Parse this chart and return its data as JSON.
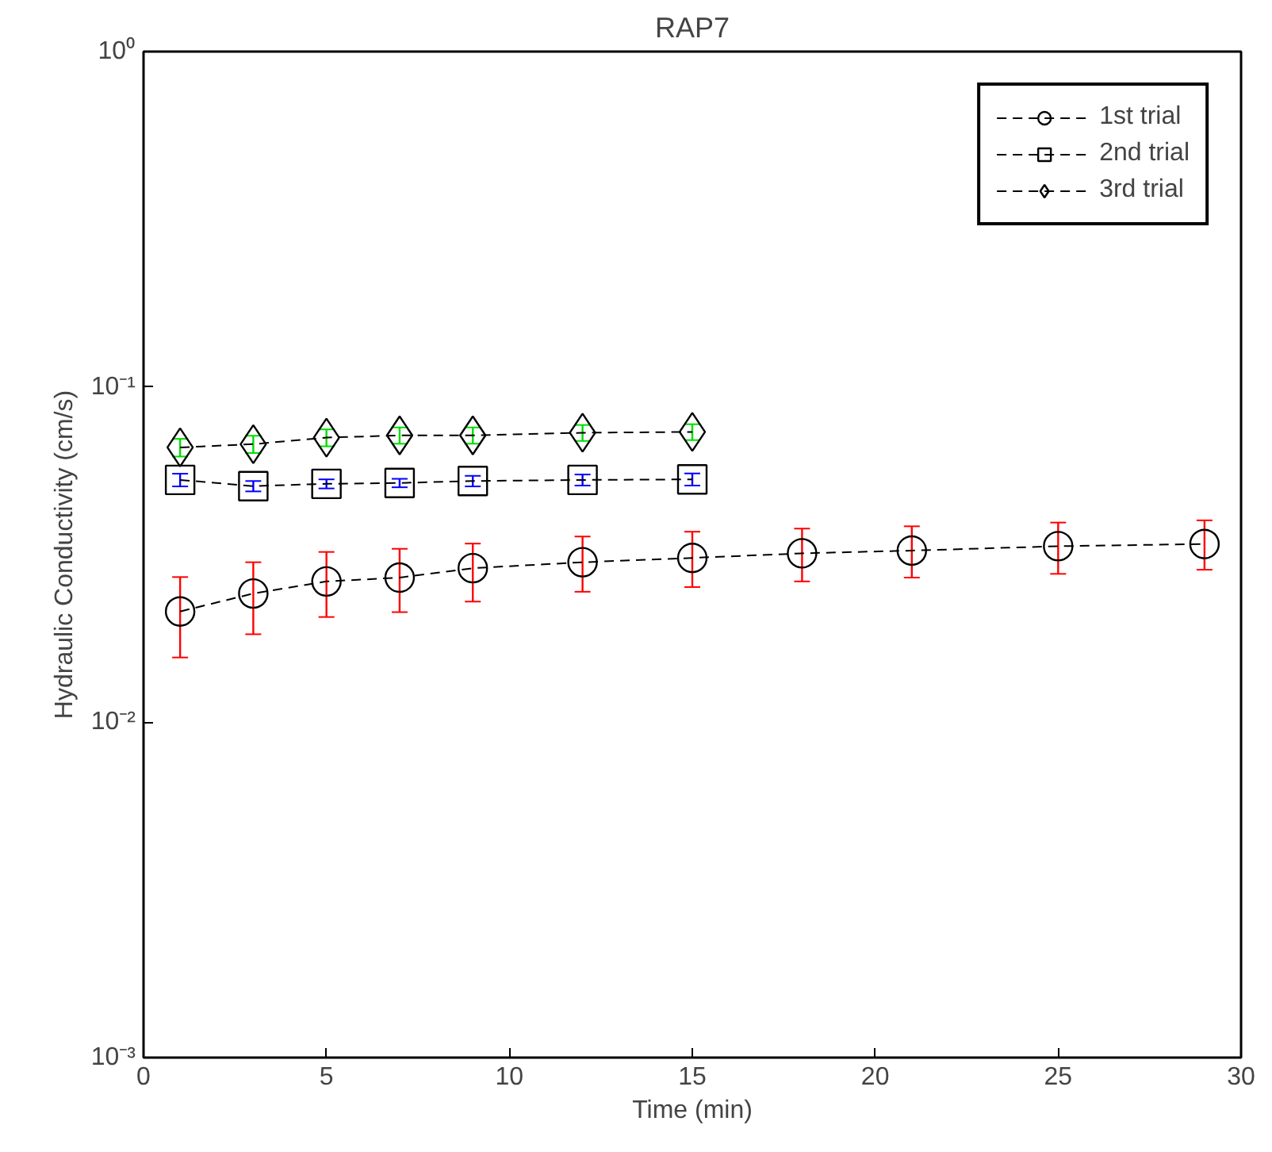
{
  "chart_data": {
    "type": "line",
    "title": "RAP7",
    "xlabel": "Time (min)",
    "ylabel": "Hydraulic Conductivity (cm/s)",
    "log": "y",
    "xlim": [
      0,
      30
    ],
    "ylim": [
      0.001,
      1
    ],
    "xticks": [
      0,
      5,
      10,
      15,
      20,
      25,
      30
    ],
    "yticks": [
      {
        "value": 0.001,
        "label": "10⁻³"
      },
      {
        "value": 0.01,
        "label": "10⁻²"
      },
      {
        "value": 0.1,
        "label": "10⁻¹"
      },
      {
        "value": 1,
        "label": "10⁰"
      }
    ],
    "grid": false,
    "legend": "top right",
    "line_style": "dashed",
    "series": [
      {
        "name": "1st trial",
        "color": "#000000",
        "marker": "circle",
        "x": [
          1,
          3,
          5,
          7,
          9,
          12,
          15,
          18,
          21,
          25,
          29
        ],
        "values": [
          0.0214,
          0.0242,
          0.0263,
          0.027,
          0.0288,
          0.03,
          0.0309,
          0.0319,
          0.0325,
          0.0335,
          0.034
        ],
        "errors": [
          [
            0.0156,
            0.0271
          ],
          [
            0.0183,
            0.03
          ],
          [
            0.0206,
            0.0322
          ],
          [
            0.0213,
            0.0329
          ],
          [
            0.0229,
            0.0341
          ],
          [
            0.0245,
            0.0358
          ],
          [
            0.0253,
            0.037
          ],
          [
            0.0263,
            0.0378
          ],
          [
            0.027,
            0.0384
          ],
          [
            0.0277,
            0.0394
          ],
          [
            0.0285,
            0.04
          ]
        ]
      },
      {
        "name": "2nd trial",
        "color": "#000000",
        "marker": "square",
        "x": [
          1,
          3,
          5,
          7,
          9,
          12,
          15
        ],
        "values": [
          0.0528,
          0.0506,
          0.0514,
          0.0517,
          0.0524,
          0.0528,
          0.053
        ],
        "errors": [
          [
            0.0505,
            0.0551
          ],
          [
            0.0488,
            0.0524
          ],
          [
            0.0498,
            0.053
          ],
          [
            0.0502,
            0.0532
          ],
          [
            0.0505,
            0.0543
          ],
          [
            0.0508,
            0.0548
          ],
          [
            0.0508,
            0.0552
          ]
        ]
      },
      {
        "name": "3rd trial",
        "color": "#000000",
        "marker": "diamond",
        "x": [
          1,
          3,
          5,
          7,
          9,
          12,
          15
        ],
        "values": [
          0.066,
          0.0675,
          0.0706,
          0.0717,
          0.0717,
          0.073,
          0.0734
        ],
        "errors": [
          [
            0.062,
            0.07
          ],
          [
            0.0635,
            0.0715
          ],
          [
            0.0665,
            0.0747
          ],
          [
            0.0677,
            0.0757
          ],
          [
            0.0677,
            0.0757
          ],
          [
            0.069,
            0.077
          ],
          [
            0.0694,
            0.0774
          ]
        ]
      }
    ]
  }
}
